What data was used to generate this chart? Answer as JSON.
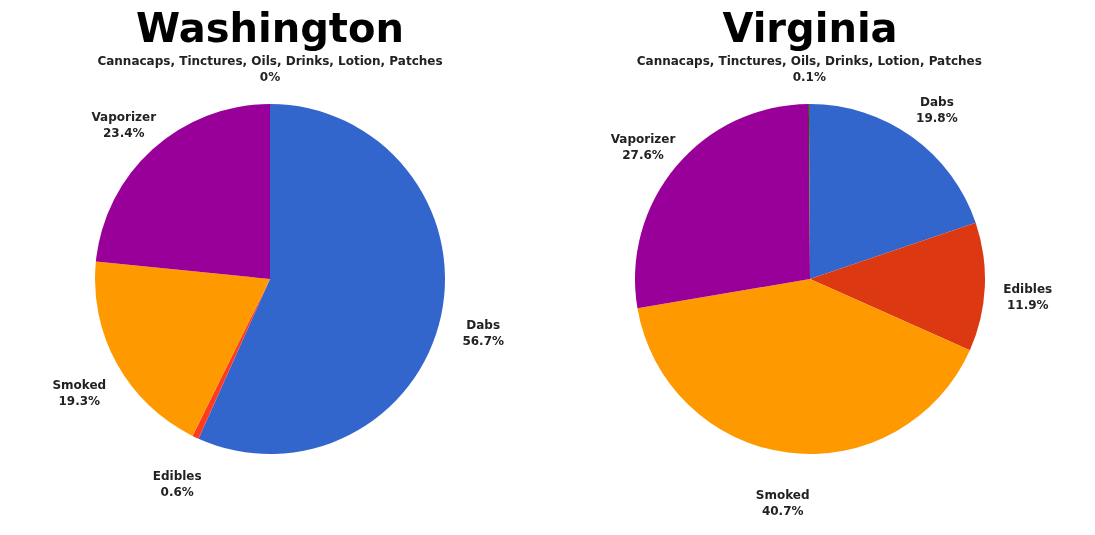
{
  "chart_data": [
    {
      "type": "pie",
      "title": "Washington",
      "categories": [
        "Dabs",
        "Edibles",
        "Smoked",
        "Vaporizer",
        "Cannacaps, Tinctures, Oils, Drinks, Lotion, Patches"
      ],
      "values": [
        56.7,
        0.6,
        19.3,
        23.4,
        0
      ],
      "value_labels": [
        "56.7%",
        "0.6%",
        "19.3%",
        "23.4%",
        "0%"
      ],
      "colors": [
        "#3366cc",
        "#ff3b1f",
        "#ff9900",
        "#990099",
        "#109618"
      ],
      "legend": false
    },
    {
      "type": "pie",
      "title": "Virginia",
      "categories": [
        "Dabs",
        "Edibles",
        "Smoked",
        "Vaporizer",
        "Cannacaps, Tinctures, Oils, Drinks, Lotion, Patches"
      ],
      "values": [
        19.8,
        11.9,
        40.7,
        27.6,
        0.1
      ],
      "value_labels": [
        "19.8%",
        "11.9%",
        "40.7%",
        "27.6%",
        "0.1%"
      ],
      "colors": [
        "#3366cc",
        "#dc3912",
        "#ff9900",
        "#990099",
        "#109618"
      ],
      "legend": false
    }
  ]
}
